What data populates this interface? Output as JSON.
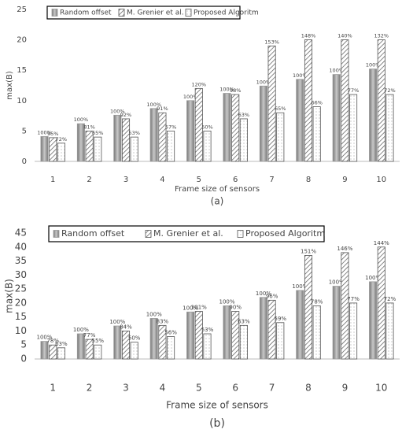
{
  "chart_data": [
    {
      "type": "bar",
      "caption": "(a)",
      "x_label": "Frame size of sensors",
      "y_label": "max(B)",
      "categories": [
        "1",
        "2",
        "3",
        "4",
        "5",
        "6",
        "7",
        "8",
        "9",
        "10"
      ],
      "series": [
        {
          "name": "Random offset",
          "color": "#9a9a9a",
          "pattern": "solid",
          "values": [
            4.1,
            6.2,
            7.6,
            8.7,
            10,
            11.2,
            12.4,
            13.5,
            14.3,
            15.2
          ],
          "annotations": [
            "100%",
            "100%",
            "100%",
            "100%",
            "100%",
            "100%",
            "100%",
            "100%",
            "100%",
            "100%"
          ]
        },
        {
          "name": "M. Grenier et al.",
          "color": "#555555",
          "pattern": "hatch",
          "values": [
            3.9,
            5,
            7,
            8,
            12,
            11,
            19,
            20,
            20,
            20
          ],
          "annotations": [
            "95%",
            "81%",
            "92%",
            "91%",
            "120%",
            "98%",
            "153%",
            "148%",
            "140%",
            "132%"
          ]
        },
        {
          "name": "Proposed Algoritm",
          "color": "#555555",
          "pattern": "dots",
          "values": [
            3,
            4,
            4,
            5,
            5,
            7,
            8,
            9,
            11,
            11
          ],
          "annotations": [
            "72%",
            "65%",
            "53%",
            "57%",
            "50%",
            "63%",
            "65%",
            "66%",
            "77%",
            "72%"
          ]
        }
      ],
      "ylim": [
        0,
        25
      ],
      "yticks": [
        0,
        5,
        10,
        15,
        20,
        25
      ],
      "grid": false,
      "legend": "top-left"
    },
    {
      "type": "bar",
      "caption": "(b)",
      "x_label": "Frame size of sensors",
      "y_label": "max(B)",
      "categories": [
        "1",
        "2",
        "3",
        "4",
        "5",
        "6",
        "7",
        "8",
        "9",
        "10"
      ],
      "series": [
        {
          "name": "Random offset",
          "color": "#9a9a9a",
          "pattern": "solid",
          "values": [
            6.3,
            9,
            11.8,
            14.5,
            16.8,
            19,
            22,
            24.5,
            26,
            27.6
          ],
          "annotations": [
            "100%",
            "100%",
            "100%",
            "100%",
            "100%",
            "100%",
            "100%",
            "100%",
            "100%",
            "100%"
          ]
        },
        {
          "name": "M. Grenier et al.",
          "color": "#555555",
          "pattern": "hatch",
          "values": [
            5,
            7,
            10,
            12,
            17,
            17,
            21,
            37,
            38,
            40
          ],
          "annotations": [
            "78%",
            "77%",
            "84%",
            "83%",
            "101%",
            "90%",
            "96%",
            "151%",
            "146%",
            "144%"
          ]
        },
        {
          "name": "Proposed Algoritm",
          "color": "#555555",
          "pattern": "dots",
          "values": [
            4,
            5,
            6,
            8,
            9,
            12,
            13,
            19,
            20,
            20
          ],
          "annotations": [
            "63%",
            "55%",
            "50%",
            "56%",
            "53%",
            "63%",
            "59%",
            "78%",
            "77%",
            "72%"
          ]
        }
      ],
      "ylim": [
        0,
        45
      ],
      "yticks": [
        0,
        5,
        10,
        15,
        20,
        25,
        30,
        35,
        40,
        45
      ],
      "grid": false,
      "legend": "top-left"
    }
  ]
}
